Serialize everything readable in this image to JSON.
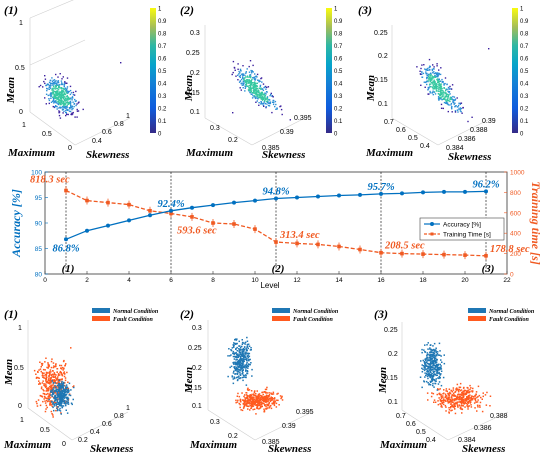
{
  "colors": {
    "accuracy": "#0070C0",
    "training": "#F05A22",
    "normal": "#1F77B4",
    "fault": "#FF5A1F",
    "scatter_dark": "#3a1f9e",
    "scatter_mid": "#2b8fd6",
    "scatter_light": "#36c8a0"
  },
  "colorbar_ticks": [
    "1",
    "0.9",
    "0.8",
    "0.7",
    "0.6",
    "0.5",
    "0.4",
    "0.3",
    "0.2",
    "0.1",
    "0"
  ],
  "top_panels": [
    {
      "panel_label": "(1)",
      "axis_labels": {
        "mean": "Mean",
        "maximum": "Maximum",
        "skewness": "Skewness"
      },
      "mean_ticks": [
        "1",
        "0.5",
        "0"
      ],
      "maximum_ticks": [
        "1",
        "0.5",
        "0"
      ],
      "skewness_ticks": [
        "0.4",
        "0.6",
        "0.8",
        "1"
      ]
    },
    {
      "panel_label": "(2)",
      "axis_labels": {
        "mean": "Mean",
        "maximum": "Maximum",
        "skewness": "Skewness"
      },
      "mean_ticks": [
        "0.3",
        "0.25",
        "0.2",
        "0.15",
        "0.1"
      ],
      "maximum_ticks": [
        "0.3",
        "0.2"
      ],
      "skewness_ticks": [
        "0.385",
        "0.39",
        "0.395"
      ]
    },
    {
      "panel_label": "(3)",
      "axis_labels": {
        "mean": "Mean",
        "maximum": "Maximum",
        "skewness": "Skewness"
      },
      "mean_ticks": [
        "0.25",
        "0.2",
        "0.15",
        "0.1"
      ],
      "maximum_ticks": [
        "0.7",
        "0.6",
        "0.5",
        "0.4"
      ],
      "skewness_ticks": [
        "0.384",
        "0.386",
        "0.388",
        "0.39"
      ]
    }
  ],
  "chart_data": {
    "type": "line",
    "xlabel": "Level",
    "ylabel_left": "Accuracy [%]",
    "ylabel_right": "Training time [s]",
    "x_ticks": [
      "0",
      "2",
      "4",
      "6",
      "8",
      "10",
      "12",
      "14",
      "16",
      "18",
      "20",
      "22"
    ],
    "y_left_ticks": [
      "80",
      "85",
      "90",
      "95",
      "100"
    ],
    "y_right_ticks": [
      "0",
      "200",
      "400",
      "600",
      "800",
      "1000"
    ],
    "xlim": [
      0,
      22
    ],
    "ylim_left": [
      80,
      100
    ],
    "ylim_right": [
      0,
      1000
    ],
    "grid": false,
    "legend_position": "right",
    "series": [
      {
        "name": "Accuracy [%]",
        "axis": "left",
        "x": [
          1,
          2,
          3,
          4,
          5,
          6,
          7,
          8,
          9,
          10,
          11,
          12,
          13,
          14,
          15,
          16,
          17,
          18,
          19,
          20,
          21
        ],
        "values": [
          86.8,
          88.5,
          89.5,
          90.5,
          91.5,
          92.4,
          93.0,
          93.5,
          94.0,
          94.4,
          94.8,
          95.0,
          95.2,
          95.4,
          95.5,
          95.7,
          95.8,
          96.0,
          96.1,
          96.1,
          96.2
        ]
      },
      {
        "name": "Training Time [s]",
        "axis": "right",
        "x": [
          1,
          2,
          3,
          4,
          5,
          6,
          7,
          8,
          9,
          10,
          11,
          12,
          13,
          14,
          15,
          16,
          17,
          18,
          19,
          20,
          21
        ],
        "values": [
          818.3,
          720,
          700,
          680,
          620,
          593.6,
          560,
          500,
          490,
          440,
          313.4,
          300,
          290,
          270,
          240,
          208.5,
          200,
          195,
          190,
          185,
          178.8
        ]
      }
    ],
    "annotations": [
      {
        "text": "86.8%",
        "x": 1,
        "y": 86.8,
        "axis": "left"
      },
      {
        "text": "92.4%",
        "x": 6,
        "y": 92.4,
        "axis": "left"
      },
      {
        "text": "94.8%",
        "x": 11,
        "y": 94.8,
        "axis": "left"
      },
      {
        "text": "95.7%",
        "x": 16,
        "y": 95.7,
        "axis": "left"
      },
      {
        "text": "96.2%",
        "x": 21,
        "y": 96.2,
        "axis": "left"
      },
      {
        "text": "818.3 sec",
        "x": 1,
        "y": 818.3,
        "axis": "right"
      },
      {
        "text": "593.6 sec",
        "x": 6,
        "y": 593.6,
        "axis": "right"
      },
      {
        "text": "313.4 sec",
        "x": 11,
        "y": 313.4,
        "axis": "right"
      },
      {
        "text": "208.5 sec",
        "x": 16,
        "y": 208.5,
        "axis": "right"
      },
      {
        "text": "178.8 sec",
        "x": 21,
        "y": 178.8,
        "axis": "right"
      }
    ],
    "level_markers": [
      {
        "x": 1,
        "label": "(1)"
      },
      {
        "x": 6,
        "label": ""
      },
      {
        "x": 11,
        "label": "(2)"
      },
      {
        "x": 16,
        "label": ""
      },
      {
        "x": 21,
        "label": "(3)"
      }
    ]
  },
  "bottom_panels": [
    {
      "panel_label": "(1)",
      "legend": [
        "Normal Condition",
        "Fault Condition"
      ],
      "axis_labels": {
        "mean": "Mean",
        "maximum": "Maximum",
        "skewness": "Skewness"
      },
      "mean_ticks": [
        "1",
        "0.5",
        "0"
      ],
      "maximum_ticks": [
        "1",
        "0.5",
        "0"
      ],
      "skewness_ticks": [
        "0.2",
        "0.4",
        "0.6",
        "0.8",
        "1"
      ]
    },
    {
      "panel_label": "(2)",
      "legend": [
        "Normal Condition",
        "Fault Condition"
      ],
      "axis_labels": {
        "mean": "Mean",
        "maximum": "Maximum",
        "skewness": "Skewness"
      },
      "mean_ticks": [
        "0.3",
        "0.25",
        "0.2",
        "0.15",
        "0.1"
      ],
      "maximum_ticks": [
        "0.3",
        "0.2"
      ],
      "skewness_ticks": [
        "0.385",
        "0.39",
        "0.395"
      ]
    },
    {
      "panel_label": "(3)",
      "legend": [
        "Normal Condition",
        "Fault Condition"
      ],
      "axis_labels": {
        "mean": "Mean",
        "maximum": "Maximum",
        "skewness": "Skewness"
      },
      "mean_ticks": [
        "0.25",
        "0.2",
        "0.15",
        "0.1"
      ],
      "maximum_ticks": [
        "0.7",
        "0.6",
        "0.5",
        "0.4"
      ],
      "skewness_ticks": [
        "0.384",
        "0.386",
        "0.388"
      ]
    }
  ]
}
